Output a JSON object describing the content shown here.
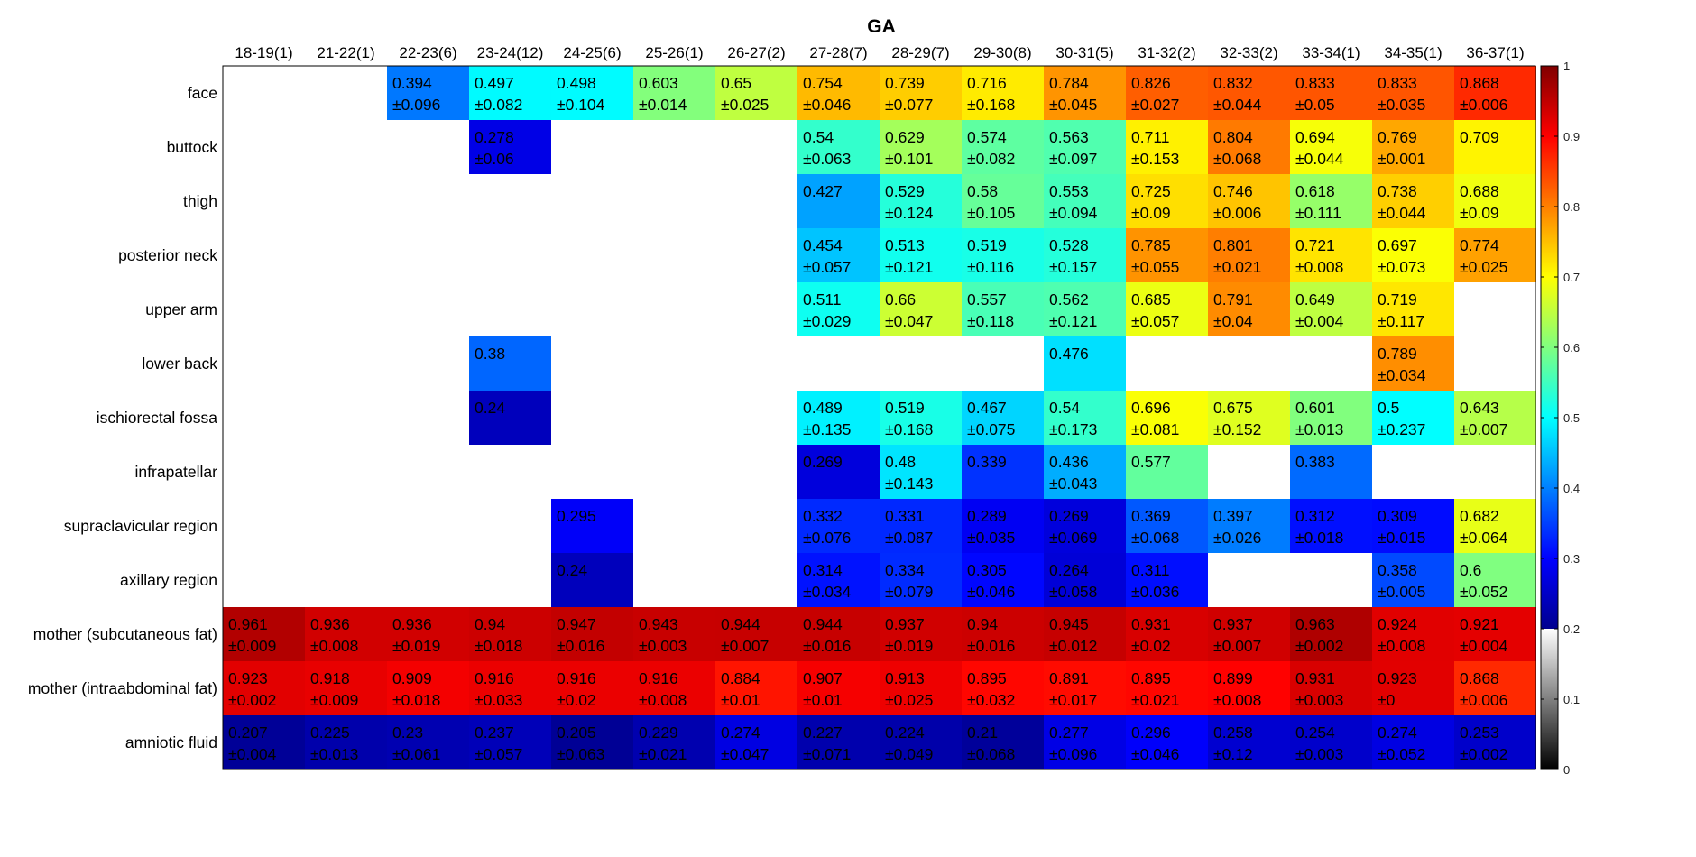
{
  "chart_data": {
    "type": "heatmap",
    "title": "GA",
    "columns": [
      "18-19(1)",
      "21-22(1)",
      "22-23(6)",
      "23-24(12)",
      "24-25(6)",
      "25-26(1)",
      "26-27(2)",
      "27-28(7)",
      "28-29(7)",
      "29-30(8)",
      "30-31(5)",
      "31-32(2)",
      "32-33(2)",
      "33-34(1)",
      "34-35(1)",
      "36-37(1)"
    ],
    "rows": [
      "face",
      "buttock",
      "thigh",
      "posterior neck",
      "upper arm",
      "lower back",
      "ischiorectal fossa",
      "infrapatellar",
      "supraclavicular region",
      "axillary region",
      "mother (subcutaneous fat)",
      "mother (intraabdominal fat)",
      "amniotic fluid"
    ],
    "colorbar": {
      "min": 0,
      "max": 1,
      "ticks": [
        "0",
        "0.1",
        "0.2",
        "0.3",
        "0.4",
        "0.5",
        "0.6",
        "0.7",
        "0.8",
        "0.9",
        "1"
      ],
      "gray_below": 0.2,
      "colormap": "jet"
    },
    "cells": [
      [
        null,
        null,
        {
          "v": "0.394",
          "sd": "±0.096"
        },
        {
          "v": "0.497",
          "sd": "±0.082"
        },
        {
          "v": "0.498",
          "sd": "±0.104"
        },
        {
          "v": "0.603",
          "sd": "±0.014"
        },
        {
          "v": "0.65",
          "sd": "±0.025"
        },
        {
          "v": "0.754",
          "sd": "±0.046"
        },
        {
          "v": "0.739",
          "sd": "±0.077"
        },
        {
          "v": "0.716",
          "sd": "±0.168"
        },
        {
          "v": "0.784",
          "sd": "±0.045"
        },
        {
          "v": "0.826",
          "sd": "±0.027"
        },
        {
          "v": "0.832",
          "sd": "±0.044"
        },
        {
          "v": "0.833",
          "sd": "±0.05"
        },
        {
          "v": "0.833",
          "sd": "±0.035"
        },
        {
          "v": "0.868",
          "sd": "±0.006"
        }
      ],
      [
        null,
        null,
        null,
        {
          "v": "0.278",
          "sd": "±0.06"
        },
        null,
        null,
        null,
        {
          "v": "0.54",
          "sd": "±0.063"
        },
        {
          "v": "0.629",
          "sd": "±0.101"
        },
        {
          "v": "0.574",
          "sd": "±0.082"
        },
        {
          "v": "0.563",
          "sd": "±0.097"
        },
        {
          "v": "0.711",
          "sd": "±0.153"
        },
        {
          "v": "0.804",
          "sd": "±0.068"
        },
        {
          "v": "0.694",
          "sd": "±0.044"
        },
        {
          "v": "0.769",
          "sd": "±0.001"
        },
        {
          "v": "0.709",
          "sd": ""
        }
      ],
      [
        null,
        null,
        null,
        null,
        null,
        null,
        null,
        {
          "v": "0.427",
          "sd": ""
        },
        {
          "v": "0.529",
          "sd": "±0.124"
        },
        {
          "v": "0.58",
          "sd": "±0.105"
        },
        {
          "v": "0.553",
          "sd": "±0.094"
        },
        {
          "v": "0.725",
          "sd": "±0.09"
        },
        {
          "v": "0.746",
          "sd": "±0.006"
        },
        {
          "v": "0.618",
          "sd": "±0.111"
        },
        {
          "v": "0.738",
          "sd": "±0.044"
        },
        {
          "v": "0.688",
          "sd": "±0.09"
        }
      ],
      [
        null,
        null,
        null,
        null,
        null,
        null,
        null,
        {
          "v": "0.454",
          "sd": "±0.057"
        },
        {
          "v": "0.513",
          "sd": "±0.121"
        },
        {
          "v": "0.519",
          "sd": "±0.116"
        },
        {
          "v": "0.528",
          "sd": "±0.157"
        },
        {
          "v": "0.785",
          "sd": "±0.055"
        },
        {
          "v": "0.801",
          "sd": "±0.021"
        },
        {
          "v": "0.721",
          "sd": "±0.008"
        },
        {
          "v": "0.697",
          "sd": "±0.073"
        },
        {
          "v": "0.774",
          "sd": "±0.025"
        }
      ],
      [
        null,
        null,
        null,
        null,
        null,
        null,
        null,
        {
          "v": "0.511",
          "sd": "±0.029"
        },
        {
          "v": "0.66",
          "sd": "±0.047"
        },
        {
          "v": "0.557",
          "sd": "±0.118"
        },
        {
          "v": "0.562",
          "sd": "±0.121"
        },
        {
          "v": "0.685",
          "sd": "±0.057"
        },
        {
          "v": "0.791",
          "sd": "±0.04"
        },
        {
          "v": "0.649",
          "sd": "±0.004"
        },
        {
          "v": "0.719",
          "sd": "±0.117"
        },
        null
      ],
      [
        null,
        null,
        null,
        {
          "v": "0.38",
          "sd": ""
        },
        null,
        null,
        null,
        null,
        null,
        null,
        {
          "v": "0.476",
          "sd": ""
        },
        null,
        null,
        null,
        {
          "v": "0.789",
          "sd": "±0.034"
        },
        null
      ],
      [
        null,
        null,
        null,
        {
          "v": "0.24",
          "sd": ""
        },
        null,
        null,
        null,
        {
          "v": "0.489",
          "sd": "±0.135"
        },
        {
          "v": "0.519",
          "sd": "±0.168"
        },
        {
          "v": "0.467",
          "sd": "±0.075"
        },
        {
          "v": "0.54",
          "sd": "±0.173"
        },
        {
          "v": "0.696",
          "sd": "±0.081"
        },
        {
          "v": "0.675",
          "sd": "±0.152"
        },
        {
          "v": "0.601",
          "sd": "±0.013"
        },
        {
          "v": "0.5",
          "sd": "±0.237"
        },
        {
          "v": "0.643",
          "sd": "±0.007"
        }
      ],
      [
        null,
        null,
        null,
        null,
        null,
        null,
        null,
        {
          "v": "0.269",
          "sd": ""
        },
        {
          "v": "0.48",
          "sd": "±0.143"
        },
        {
          "v": "0.339",
          "sd": ""
        },
        {
          "v": "0.436",
          "sd": "±0.043"
        },
        {
          "v": "0.577",
          "sd": ""
        },
        null,
        {
          "v": "0.383",
          "sd": ""
        },
        null,
        null
      ],
      [
        null,
        null,
        null,
        null,
        {
          "v": "0.295",
          "sd": ""
        },
        null,
        null,
        {
          "v": "0.332",
          "sd": "±0.076"
        },
        {
          "v": "0.331",
          "sd": "±0.087"
        },
        {
          "v": "0.289",
          "sd": "±0.035"
        },
        {
          "v": "0.269",
          "sd": "±0.069"
        },
        {
          "v": "0.369",
          "sd": "±0.068"
        },
        {
          "v": "0.397",
          "sd": "±0.026"
        },
        {
          "v": "0.312",
          "sd": "±0.018"
        },
        {
          "v": "0.309",
          "sd": "±0.015"
        },
        {
          "v": "0.682",
          "sd": "±0.064"
        }
      ],
      [
        null,
        null,
        null,
        null,
        {
          "v": "0.24",
          "sd": ""
        },
        null,
        null,
        {
          "v": "0.314",
          "sd": "±0.034"
        },
        {
          "v": "0.334",
          "sd": "±0.079"
        },
        {
          "v": "0.305",
          "sd": "±0.046"
        },
        {
          "v": "0.264",
          "sd": "±0.058"
        },
        {
          "v": "0.311",
          "sd": "±0.036"
        },
        null,
        null,
        {
          "v": "0.358",
          "sd": "±0.005"
        },
        {
          "v": "0.6",
          "sd": "±0.052"
        }
      ],
      [
        {
          "v": "0.961",
          "sd": "±0.009"
        },
        {
          "v": "0.936",
          "sd": "±0.008"
        },
        {
          "v": "0.936",
          "sd": "±0.019"
        },
        {
          "v": "0.94",
          "sd": "±0.018"
        },
        {
          "v": "0.947",
          "sd": "±0.016"
        },
        {
          "v": "0.943",
          "sd": "±0.003"
        },
        {
          "v": "0.944",
          "sd": "±0.007"
        },
        {
          "v": "0.944",
          "sd": "±0.016"
        },
        {
          "v": "0.937",
          "sd": "±0.019"
        },
        {
          "v": "0.94",
          "sd": "±0.016"
        },
        {
          "v": "0.945",
          "sd": "±0.012"
        },
        {
          "v": "0.931",
          "sd": "±0.02"
        },
        {
          "v": "0.937",
          "sd": "±0.007"
        },
        {
          "v": "0.963",
          "sd": "±0.002"
        },
        {
          "v": "0.924",
          "sd": "±0.008"
        },
        {
          "v": "0.921",
          "sd": "±0.004"
        }
      ],
      [
        {
          "v": "0.923",
          "sd": "±0.002"
        },
        {
          "v": "0.918",
          "sd": "±0.009"
        },
        {
          "v": "0.909",
          "sd": "±0.018"
        },
        {
          "v": "0.916",
          "sd": "±0.033"
        },
        {
          "v": "0.916",
          "sd": "±0.02"
        },
        {
          "v": "0.916",
          "sd": "±0.008"
        },
        {
          "v": "0.884",
          "sd": "±0.01"
        },
        {
          "v": "0.907",
          "sd": "±0.01"
        },
        {
          "v": "0.913",
          "sd": "±0.025"
        },
        {
          "v": "0.895",
          "sd": "±0.032"
        },
        {
          "v": "0.891",
          "sd": "±0.017"
        },
        {
          "v": "0.895",
          "sd": "±0.021"
        },
        {
          "v": "0.899",
          "sd": "±0.008"
        },
        {
          "v": "0.931",
          "sd": "±0.003"
        },
        {
          "v": "0.923",
          "sd": "±0"
        },
        {
          "v": "0.868",
          "sd": "±0.006"
        }
      ],
      [
        {
          "v": "0.207",
          "sd": "±0.004"
        },
        {
          "v": "0.225",
          "sd": "±0.013"
        },
        {
          "v": "0.23",
          "sd": "±0.061"
        },
        {
          "v": "0.237",
          "sd": "±0.057"
        },
        {
          "v": "0.205",
          "sd": "±0.063"
        },
        {
          "v": "0.229",
          "sd": "±0.021"
        },
        {
          "v": "0.274",
          "sd": "±0.047"
        },
        {
          "v": "0.227",
          "sd": "±0.071"
        },
        {
          "v": "0.224",
          "sd": "±0.049"
        },
        {
          "v": "0.21",
          "sd": "±0.068"
        },
        {
          "v": "0.277",
          "sd": "±0.096"
        },
        {
          "v": "0.296",
          "sd": "±0.046"
        },
        {
          "v": "0.258",
          "sd": "±0.12"
        },
        {
          "v": "0.254",
          "sd": "±0.003"
        },
        {
          "v": "0.274",
          "sd": "±0.052"
        },
        {
          "v": "0.253",
          "sd": "±0.002"
        }
      ]
    ]
  }
}
